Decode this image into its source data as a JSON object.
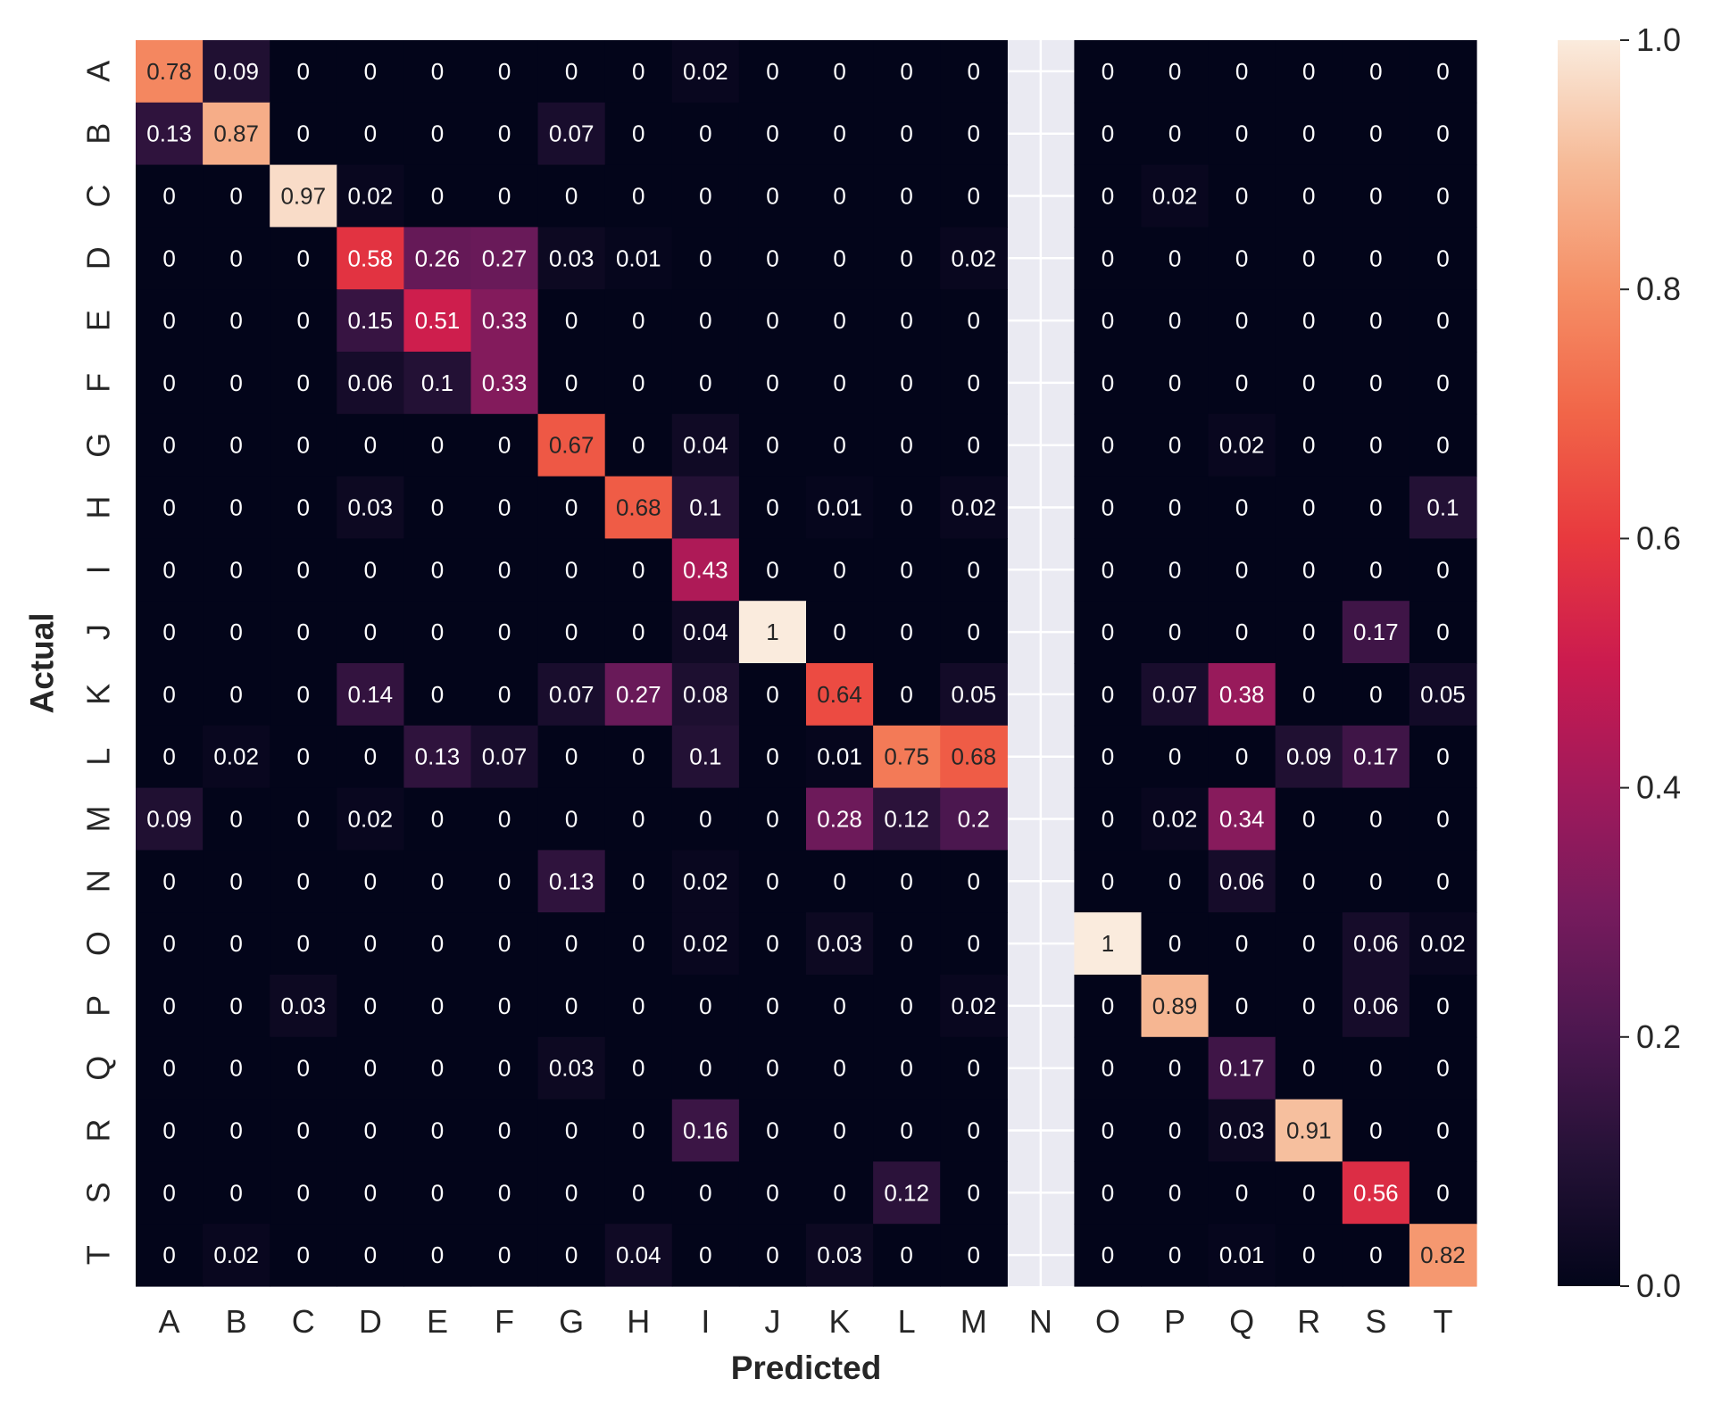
{
  "chart_data": {
    "type": "heatmap",
    "xlabel": "Predicted",
    "ylabel": "Actual",
    "x_categories": [
      "A",
      "B",
      "C",
      "D",
      "E",
      "F",
      "G",
      "H",
      "I",
      "J",
      "K",
      "L",
      "M",
      "N",
      "O",
      "P",
      "Q",
      "R",
      "S",
      "T"
    ],
    "y_categories": [
      "A",
      "B",
      "C",
      "D",
      "E",
      "F",
      "G",
      "H",
      "I",
      "J",
      "K",
      "L",
      "M",
      "N",
      "O",
      "P",
      "Q",
      "R",
      "S",
      "T"
    ],
    "values": [
      [
        0.78,
        0.09,
        0,
        0,
        0,
        0,
        0,
        0,
        0.02,
        0,
        0,
        0,
        0,
        null,
        0,
        0,
        0,
        0,
        0,
        0
      ],
      [
        0.13,
        0.87,
        0,
        0,
        0,
        0,
        0.07,
        0,
        0,
        0,
        0,
        0,
        0,
        null,
        0,
        0,
        0,
        0,
        0,
        0
      ],
      [
        0,
        0,
        0.97,
        0.02,
        0,
        0,
        0,
        0,
        0,
        0,
        0,
        0,
        0,
        null,
        0,
        0.02,
        0,
        0,
        0,
        0
      ],
      [
        0,
        0,
        0,
        0.58,
        0.26,
        0.27,
        0.03,
        0.01,
        0,
        0,
        0,
        0,
        0.02,
        null,
        0,
        0,
        0,
        0,
        0,
        0
      ],
      [
        0,
        0,
        0,
        0.15,
        0.51,
        0.33,
        0,
        0,
        0,
        0,
        0,
        0,
        0,
        null,
        0,
        0,
        0,
        0,
        0,
        0
      ],
      [
        0,
        0,
        0,
        0.06,
        0.1,
        0.33,
        0,
        0,
        0,
        0,
        0,
        0,
        0,
        null,
        0,
        0,
        0,
        0,
        0,
        0
      ],
      [
        0,
        0,
        0,
        0,
        0,
        0,
        0.67,
        0,
        0.04,
        0,
        0,
        0,
        0,
        null,
        0,
        0,
        0.02,
        0,
        0,
        0
      ],
      [
        0,
        0,
        0,
        0.03,
        0,
        0,
        0,
        0.68,
        0.1,
        0,
        0.01,
        0,
        0.02,
        null,
        0,
        0,
        0,
        0,
        0,
        0.1
      ],
      [
        0,
        0,
        0,
        0,
        0,
        0,
        0,
        0,
        0.43,
        0,
        0,
        0,
        0,
        null,
        0,
        0,
        0,
        0,
        0,
        0
      ],
      [
        0,
        0,
        0,
        0,
        0,
        0,
        0,
        0,
        0.04,
        1,
        0,
        0,
        0,
        null,
        0,
        0,
        0,
        0,
        0.17,
        0
      ],
      [
        0,
        0,
        0,
        0.14,
        0,
        0,
        0.07,
        0.27,
        0.08,
        0,
        0.64,
        0,
        0.05,
        null,
        0,
        0.07,
        0.38,
        0,
        0,
        0.05
      ],
      [
        0,
        0.02,
        0,
        0,
        0.13,
        0.07,
        0,
        0,
        0.1,
        0,
        0.01,
        0.75,
        0.68,
        null,
        0,
        0,
        0,
        0.09,
        0.17,
        0
      ],
      [
        0.09,
        0,
        0,
        0.02,
        0,
        0,
        0,
        0,
        0,
        0,
        0.28,
        0.12,
        0.2,
        null,
        0,
        0.02,
        0.34,
        0,
        0,
        0
      ],
      [
        0,
        0,
        0,
        0,
        0,
        0,
        0.13,
        0,
        0.02,
        0,
        0,
        0,
        0,
        null,
        0,
        0,
        0.06,
        0,
        0,
        0
      ],
      [
        0,
        0,
        0,
        0,
        0,
        0,
        0,
        0,
        0.02,
        0,
        0.03,
        0,
        0,
        null,
        1,
        0,
        0,
        0,
        0.06,
        0.02
      ],
      [
        0,
        0,
        0.03,
        0,
        0,
        0,
        0,
        0,
        0,
        0,
        0,
        0,
        0.02,
        null,
        0,
        0.89,
        0,
        0,
        0.06,
        0
      ],
      [
        0,
        0,
        0,
        0,
        0,
        0,
        0.03,
        0,
        0,
        0,
        0,
        0,
        0,
        null,
        0,
        0,
        0.17,
        0,
        0,
        0
      ],
      [
        0,
        0,
        0,
        0,
        0,
        0,
        0,
        0,
        0.16,
        0,
        0,
        0,
        0,
        null,
        0,
        0,
        0.03,
        0.91,
        0,
        0
      ],
      [
        0,
        0,
        0,
        0,
        0,
        0,
        0,
        0,
        0,
        0,
        0,
        0.12,
        0,
        null,
        0,
        0,
        0,
        0,
        0.56,
        0
      ],
      [
        0,
        0.02,
        0,
        0,
        0,
        0,
        0,
        0.04,
        0,
        0,
        0.03,
        0,
        0,
        null,
        0,
        0,
        0.01,
        0,
        0,
        0.82
      ]
    ],
    "vmin": 0,
    "vmax": 1,
    "colormap": "rocket",
    "colorbar": {
      "ticks": [
        "0.0",
        "0.2",
        "0.4",
        "0.6",
        "0.8",
        "1.0"
      ],
      "placement": "right"
    },
    "annotations": true,
    "missing_column_background": "#eaeaf2",
    "grid": "white lines in missing column only"
  }
}
